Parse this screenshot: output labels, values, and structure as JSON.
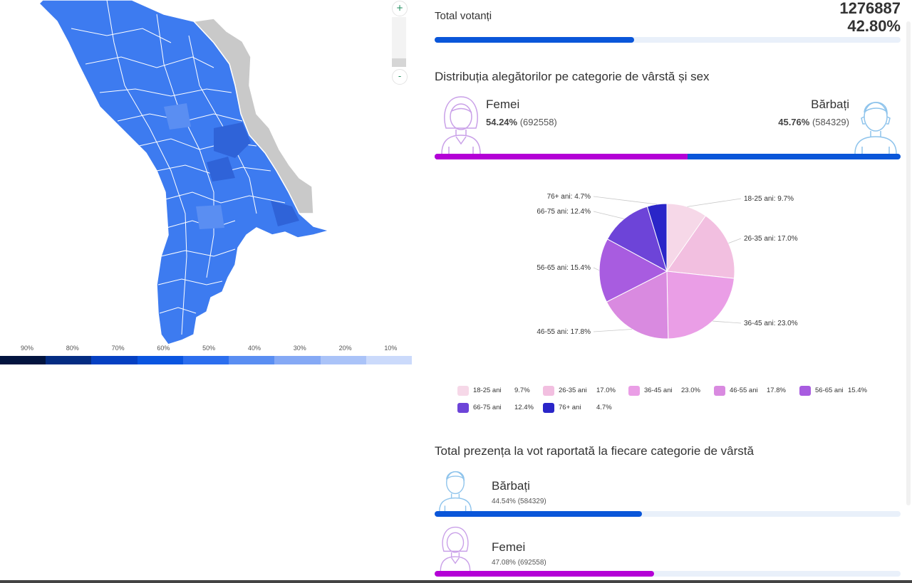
{
  "colors": {
    "accent_blue": "#0a56d9",
    "accent_magenta": "#b400d6",
    "track": "#e9f0fa",
    "map_fill": "#3d7bf0",
    "map_border_region": "#c9c9c9"
  },
  "map": {
    "zoom_in_label": "+",
    "zoom_out_label": "-",
    "legend_scale": {
      "labels": [
        "90%",
        "80%",
        "70%",
        "60%",
        "50%",
        "40%",
        "30%",
        "20%",
        "10%"
      ],
      "colors": [
        "#02143f",
        "#042c82",
        "#0540c2",
        "#0a55e0",
        "#2c6eee",
        "#5a8ef2",
        "#85a9f5",
        "#aac3f8",
        "#cbdafb"
      ]
    }
  },
  "turnout": {
    "label": "Total votanți",
    "count": "1276887",
    "percent": "42.80%",
    "fill_fraction": 0.428
  },
  "distribution": {
    "title": "Distribuția alegătorilor pe categorie de vârstă și sex",
    "female": {
      "name": "Femei",
      "percent": "54.24%",
      "count": "(692558)",
      "fraction": 0.5424,
      "icon": "female-avatar-icon"
    },
    "male": {
      "name": "Bărbați",
      "percent": "45.76%",
      "count": "(584329)",
      "fraction": 0.4576,
      "icon": "male-avatar-icon"
    }
  },
  "chart_data": {
    "type": "pie",
    "categories": [
      "18-25 ani",
      "26-35 ani",
      "36-45 ani",
      "46-55 ani",
      "56-65 ani",
      "66-75 ani",
      "76+ ani"
    ],
    "values": [
      9.7,
      17.0,
      23.0,
      17.8,
      15.4,
      12.4,
      4.7
    ],
    "slice_labels": [
      "18-25 ani: 9.7%",
      "26-35 ani: 17.0%",
      "36-45 ani: 23.0%",
      "46-55 ani: 17.8%",
      "56-65 ani: 15.4%",
      "66-75 ani: 12.4%",
      "76+ ani: 4.7%"
    ],
    "legend_values": [
      "9.7%",
      "17.0%",
      "23.0%",
      "17.8%",
      "15.4%",
      "12.4%",
      "4.7%"
    ],
    "colors": [
      "#f6d8e8",
      "#f2bfe0",
      "#ea9ee6",
      "#d98ae0",
      "#a85ce0",
      "#6d44d8",
      "#2a25c8"
    ],
    "legend_placement": "bottom"
  },
  "turnout_by_category": {
    "title": "Total prezența la vot raportată la fiecare categorie de vârstă",
    "male": {
      "name": "Bărbați",
      "stat": "44.54% (584329)",
      "fraction": 0.4454,
      "icon": "male-avatar-icon"
    },
    "female": {
      "name": "Femei",
      "stat": "47.08% (692558)",
      "fraction": 0.4708,
      "icon": "female-avatar-icon"
    }
  }
}
